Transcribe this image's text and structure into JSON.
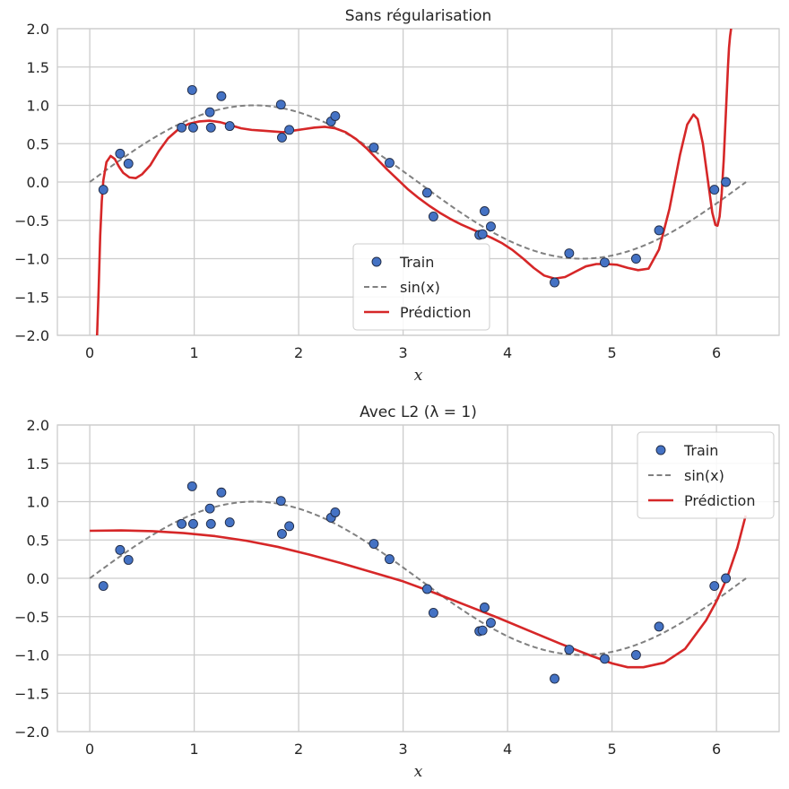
{
  "chart_data": [
    {
      "type": "scatter+line",
      "title": "Sans régularisation",
      "xlabel": "x",
      "ylabel": "",
      "xlim": [
        -0.31,
        6.6
      ],
      "ylim": [
        -2.0,
        2.0
      ],
      "xticks": [
        0,
        1,
        2,
        3,
        4,
        5,
        6
      ],
      "xtick_labels": [
        "0",
        "1",
        "2",
        "3",
        "4",
        "5",
        "6"
      ],
      "yticks": [
        -2.0,
        -1.5,
        -1.0,
        -0.5,
        0.0,
        0.5,
        1.0,
        1.5,
        2.0
      ],
      "ytick_labels": [
        "−2.0",
        "−1.5",
        "−1.0",
        "−0.5",
        "0.0",
        "0.5",
        "1.0",
        "1.5",
        "2.0"
      ],
      "grid": true,
      "legend_position": "lower-center",
      "legend": [
        {
          "label": "Train",
          "kind": "marker",
          "color": "#4472C4"
        },
        {
          "label": "sin(x)",
          "kind": "dashed",
          "color": "#808080"
        },
        {
          "label": "Prédiction",
          "kind": "line",
          "color": "#D62728"
        }
      ],
      "train": {
        "name": "Train",
        "color": "#4472C4",
        "x": [
          0.13,
          0.29,
          0.37,
          0.88,
          0.98,
          0.99,
          1.15,
          1.16,
          1.26,
          1.34,
          1.83,
          1.84,
          1.91,
          2.31,
          2.35,
          2.72,
          2.87,
          3.23,
          3.29,
          3.73,
          3.76,
          3.78,
          3.84,
          4.45,
          4.59,
          4.93,
          5.23,
          5.45,
          5.98,
          6.09
        ],
        "y": [
          -0.1,
          0.37,
          0.24,
          0.71,
          1.2,
          0.71,
          0.91,
          0.71,
          1.12,
          0.73,
          1.01,
          0.58,
          0.68,
          0.79,
          0.86,
          0.45,
          0.25,
          -0.14,
          -0.45,
          -0.69,
          -0.68,
          -0.38,
          -0.58,
          -1.31,
          -0.93,
          -1.05,
          -1.0,
          -0.63,
          -0.1,
          0.0
        ]
      },
      "reference": {
        "name": "sin(x)",
        "color": "#808080",
        "x_range": [
          0,
          6.283
        ]
      },
      "prediction": {
        "name": "Prédiction",
        "color": "#D62728",
        "x": [
          0.07,
          0.085,
          0.1,
          0.115,
          0.13,
          0.16,
          0.2,
          0.24,
          0.28,
          0.32,
          0.38,
          0.44,
          0.5,
          0.58,
          0.66,
          0.75,
          0.85,
          0.95,
          1.05,
          1.15,
          1.25,
          1.35,
          1.45,
          1.55,
          1.65,
          1.75,
          1.85,
          1.95,
          2.05,
          2.15,
          2.25,
          2.35,
          2.45,
          2.55,
          2.65,
          2.75,
          2.85,
          2.95,
          3.05,
          3.15,
          3.25,
          3.35,
          3.45,
          3.55,
          3.65,
          3.75,
          3.85,
          3.95,
          4.05,
          4.15,
          4.25,
          4.35,
          4.45,
          4.55,
          4.65,
          4.75,
          4.85,
          4.95,
          5.05,
          5.15,
          5.25,
          5.35,
          5.45,
          5.55,
          5.65,
          5.72,
          5.78,
          5.82,
          5.87,
          5.92,
          5.96,
          5.99,
          6.01,
          6.03,
          6.05,
          6.07,
          6.09,
          6.11,
          6.12,
          6.13,
          6.14,
          6.145
        ],
        "y": [
          -2.0,
          -1.4,
          -0.7,
          -0.25,
          0.02,
          0.26,
          0.34,
          0.3,
          0.2,
          0.12,
          0.06,
          0.05,
          0.1,
          0.22,
          0.4,
          0.57,
          0.69,
          0.76,
          0.79,
          0.8,
          0.78,
          0.74,
          0.7,
          0.68,
          0.67,
          0.66,
          0.65,
          0.67,
          0.69,
          0.71,
          0.72,
          0.7,
          0.65,
          0.56,
          0.44,
          0.3,
          0.16,
          0.03,
          -0.1,
          -0.21,
          -0.31,
          -0.4,
          -0.48,
          -0.55,
          -0.61,
          -0.67,
          -0.73,
          -0.8,
          -0.89,
          -1.0,
          -1.12,
          -1.22,
          -1.26,
          -1.24,
          -1.17,
          -1.1,
          -1.07,
          -1.07,
          -1.08,
          -1.12,
          -1.15,
          -1.13,
          -0.88,
          -0.35,
          0.35,
          0.75,
          0.88,
          0.82,
          0.5,
          0.0,
          -0.4,
          -0.56,
          -0.57,
          -0.45,
          -0.15,
          0.3,
          0.9,
          1.5,
          1.75,
          1.9,
          2.0,
          2.0
        ]
      }
    },
    {
      "type": "scatter+line",
      "title": "Avec L2 (λ = 1)",
      "xlabel": "x",
      "ylabel": "",
      "xlim": [
        -0.31,
        6.6
      ],
      "ylim": [
        -2.0,
        2.0
      ],
      "xticks": [
        0,
        1,
        2,
        3,
        4,
        5,
        6
      ],
      "xtick_labels": [
        "0",
        "1",
        "2",
        "3",
        "4",
        "5",
        "6"
      ],
      "yticks": [
        -2.0,
        -1.5,
        -1.0,
        -0.5,
        0.0,
        0.5,
        1.0,
        1.5,
        2.0
      ],
      "ytick_labels": [
        "−2.0",
        "−1.5",
        "−1.0",
        "−0.5",
        "0.0",
        "0.5",
        "1.0",
        "1.5",
        "2.0"
      ],
      "grid": true,
      "legend_position": "top-right",
      "legend": [
        {
          "label": "Train",
          "kind": "marker",
          "color": "#4472C4"
        },
        {
          "label": "sin(x)",
          "kind": "dashed",
          "color": "#808080"
        },
        {
          "label": "Prédiction",
          "kind": "line",
          "color": "#D62728"
        }
      ],
      "train": {
        "name": "Train",
        "color": "#4472C4",
        "x": [
          0.13,
          0.29,
          0.37,
          0.88,
          0.98,
          0.99,
          1.15,
          1.16,
          1.26,
          1.34,
          1.83,
          1.84,
          1.91,
          2.31,
          2.35,
          2.72,
          2.87,
          3.23,
          3.29,
          3.73,
          3.76,
          3.78,
          3.84,
          4.45,
          4.59,
          4.93,
          5.23,
          5.45,
          5.98,
          6.09
        ],
        "y": [
          -0.1,
          0.37,
          0.24,
          0.71,
          1.2,
          0.71,
          0.91,
          0.71,
          1.12,
          0.73,
          1.01,
          0.58,
          0.68,
          0.79,
          0.86,
          0.45,
          0.25,
          -0.14,
          -0.45,
          -0.69,
          -0.68,
          -0.38,
          -0.58,
          -1.31,
          -0.93,
          -1.05,
          -1.0,
          -0.63,
          -0.1,
          0.0
        ]
      },
      "reference": {
        "name": "sin(x)",
        "color": "#808080",
        "x_range": [
          0,
          6.283
        ]
      },
      "prediction": {
        "name": "Prédiction",
        "color": "#D62728",
        "x": [
          0.0,
          0.3,
          0.6,
          0.9,
          1.2,
          1.5,
          1.8,
          2.1,
          2.4,
          2.7,
          3.0,
          3.3,
          3.6,
          3.9,
          4.2,
          4.5,
          4.8,
          5.0,
          5.15,
          5.3,
          5.5,
          5.7,
          5.9,
          6.0,
          6.1,
          6.2,
          6.28
        ],
        "y": [
          0.62,
          0.625,
          0.615,
          0.59,
          0.55,
          0.49,
          0.41,
          0.31,
          0.2,
          0.08,
          -0.04,
          -0.19,
          -0.35,
          -0.51,
          -0.68,
          -0.85,
          -1.01,
          -1.11,
          -1.16,
          -1.16,
          -1.1,
          -0.92,
          -0.55,
          -0.3,
          0.0,
          0.4,
          0.82
        ]
      }
    }
  ]
}
